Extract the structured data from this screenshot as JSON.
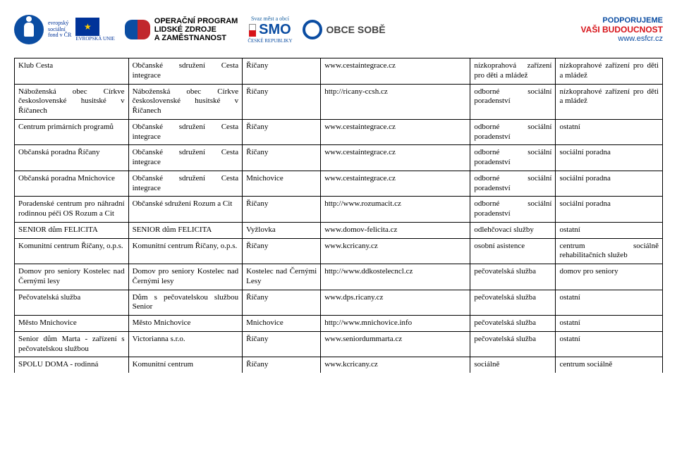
{
  "header": {
    "esf_line1": "evropský",
    "esf_line2": "sociální",
    "esf_line3": "fond v ČR",
    "eu_label": "EVROPSKÁ UNIE",
    "oplz_line1": "OPERAČNÍ PROGRAM",
    "oplz_line2": "LIDSKÉ ZDROJE",
    "oplz_line3": "A ZAMĚSTNANOST",
    "smo_top": "Svaz měst a obcí",
    "smo_big": "SMO",
    "smo_bot": "ČESKÉ REPUBLIKY",
    "obce": "OBCE SOBĚ",
    "podp_l1": "PODPORUJEME",
    "podp_l2": "VAŠI BUDOUCNOST",
    "podp_l3": "www.esfcr.cz"
  },
  "rows": [
    {
      "c1": "Klub Cesta",
      "c2": "Občanské sdružení Cesta integrace",
      "c3": "Říčany",
      "c4": "www.cestaintegrace.cz",
      "c5": "nízkoprahová zařízení pro děti a mládež",
      "c6": "nízkoprahové zařízení pro děti a mládež"
    },
    {
      "c1": "Náboženská obec Církve československé husitské v Říčanech",
      "c2": "Náboženská obec Církve československé husitské v Říčanech",
      "c3": "Říčany",
      "c4": "http://ricany-ccsh.cz",
      "c5": "odborné sociální poradenství",
      "c6": "nízkoprahové zařízení pro děti a mládež"
    },
    {
      "c1": "Centrum primárních programů",
      "c2": "Občanské sdružení Cesta integrace",
      "c3": "Říčany",
      "c4": "www.cestaintegrace.cz",
      "c5": "odborné sociální poradenství",
      "c6": "ostatní"
    },
    {
      "c1": "Občanská poradna Říčany",
      "c2": "Občanské sdružení Cesta integrace",
      "c3": "Říčany",
      "c4": "www.cestaintegrace.cz",
      "c5": "odborné sociální poradenství",
      "c6": "sociální poradna"
    },
    {
      "c1": "Občanská poradna Mnichovice",
      "c2": "Občanské sdružení Cesta integrace",
      "c3": "Mnichovice",
      "c4": "www.cestaintegrace.cz",
      "c5": "odborné sociální poradenství",
      "c6": "sociální poradna"
    },
    {
      "c1": "Poradenské centrum pro náhradní rodinnou péči OS Rozum a Cit",
      "c2": "Občanské sdružení Rozum a Cit",
      "c3": "Říčany",
      "c4": "http://www.rozumacit.cz",
      "c5": "odborné sociální poradenství",
      "c6": "sociální poradna"
    },
    {
      "c1": "SENIOR dům FELICITA",
      "c2": "SENIOR dům FELICITA",
      "c3": "Vyžlovka",
      "c4": "www.domov-felicita.cz",
      "c5": "odlehčovací služby",
      "c6": "ostatní"
    },
    {
      "c1": "Komunitní centrum Říčany, o.p.s.",
      "c2": "Komunitní centrum Říčany, o.p.s.",
      "c3": "Říčany",
      "c4": "www.kcricany.cz",
      "c5": "osobní asistence",
      "c6": "centrum sociálně rehabilitačních služeb"
    },
    {
      "c1": "Domov pro seniory Kostelec nad Černými lesy",
      "c2": "Domov pro seniory Kostelec nad Černými lesy",
      "c3": "Kostelec nad Černými Lesy",
      "c4": "http://www.ddkostelecncl.cz",
      "c5": "pečovatelská služba",
      "c6": "domov pro seniory"
    },
    {
      "c1": "Pečovatelská služba",
      "c2": "Dům s pečovatelskou službou Senior",
      "c3": "Říčany",
      "c4": "www.dps.ricany.cz",
      "c5": "pečovatelská služba",
      "c6": "ostatní"
    },
    {
      "c1": "Město Mnichovice",
      "c2": "Město Mnichovice",
      "c3": "Mnichovice",
      "c4": "http://www.mnichovice.info",
      "c5": "pečovatelská služba",
      "c6": "ostatní"
    },
    {
      "c1": "Senior dům Marta - zařízení s pečovatelskou službou",
      "c2": "Victorianna s.r.o.",
      "c3": "Říčany",
      "c4": "www.seniordummarta.cz",
      "c5": "pečovatelská služba",
      "c6": "ostatní"
    },
    {
      "c1": "SPOLU DOMA - rodinná",
      "c2": "Komunitní centrum",
      "c3": "Říčany",
      "c4": "www.kcricany.cz",
      "c5": "sociálně",
      "c6": "centrum sociálně",
      "last": true
    }
  ]
}
